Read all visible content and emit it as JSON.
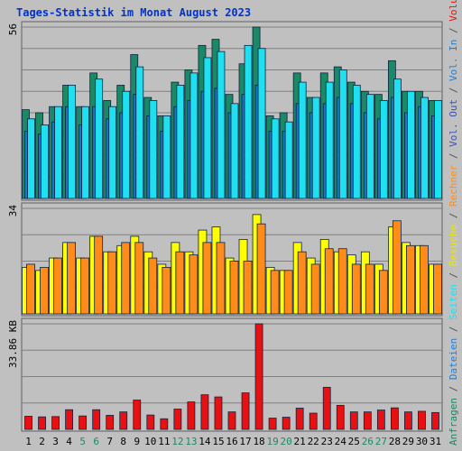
{
  "chart_data": {
    "type": "bar",
    "title": "Tages-Statistik im Monat August 2023",
    "categories": [
      "1",
      "2",
      "3",
      "4",
      "5",
      "6",
      "7",
      "8",
      "9",
      "10",
      "11",
      "12",
      "13",
      "14",
      "15",
      "16",
      "17",
      "18",
      "19",
      "20",
      "21",
      "22",
      "23",
      "24",
      "25",
      "26",
      "27",
      "28",
      "29",
      "30",
      "31"
    ],
    "weekend_days": [
      "5",
      "6",
      "12",
      "13",
      "19",
      "20",
      "26",
      "27"
    ],
    "panels": [
      {
        "name": "anfragen-seiten-dateien",
        "ymax": 56,
        "ymax_label": "56",
        "series": [
          {
            "name": "Anfragen",
            "color": "#1a8a66",
            "values": [
              29,
              28,
              30,
              37,
              30,
              41,
              32,
              37,
              47,
              33,
              27,
              38,
              42,
              50,
              52,
              34,
              44,
              56,
              27,
              28,
              41,
              33,
              41,
              43,
              38,
              35,
              34,
              45,
              35,
              35,
              32
            ]
          },
          {
            "name": "Seiten",
            "color": "#1878c8",
            "values": [
              22,
              21,
              25,
              30,
              24,
              30,
              26,
              28,
              34,
              27,
              22,
              30,
              32,
              35,
              36,
              28,
              34,
              37,
              22,
              22,
              31,
              28,
              31,
              33,
              31,
              28,
              26,
              33,
              28,
              30,
              27
            ]
          },
          {
            "name": "Dateien",
            "color": "#1ee0f0",
            "values": [
              26,
              24,
              30,
              37,
              30,
              39,
              30,
              35,
              43,
              32,
              27,
              37,
              41,
              46,
              48,
              31,
              50,
              49,
              26,
              25,
              38,
              33,
              38,
              42,
              37,
              34,
              32,
              39,
              35,
              33,
              32
            ]
          }
        ]
      },
      {
        "name": "besuche-rechner",
        "ymax": 34,
        "ymax_label": "34",
        "series": [
          {
            "name": "Besuche",
            "color": "#ffff00",
            "values": [
              15,
              14,
              18,
              23,
              18,
              25,
              20,
              22,
              25,
              20,
              16,
              23,
              20,
              27,
              28,
              18,
              24,
              32,
              15,
              14,
              23,
              18,
              24,
              20,
              19,
              20,
              16,
              28,
              23,
              22,
              16
            ]
          },
          {
            "name": "Rechner",
            "color": "#ff8c1a",
            "values": [
              16,
              15,
              18,
              23,
              18,
              25,
              20,
              23,
              23,
              18,
              15,
              20,
              19,
              23,
              23,
              17,
              17,
              29,
              14,
              14,
              20,
              16,
              21,
              21,
              16,
              16,
              14,
              30,
              22,
              22,
              16
            ]
          }
        ]
      },
      {
        "name": "volumen",
        "ymax": 33.86,
        "ymax_label": "33.86 KB",
        "series": [
          {
            "name": "Volumen",
            "color": "#e81010",
            "values": [
              4.2,
              4.0,
              4.1,
              6.3,
              4.3,
              6.3,
              4.5,
              5.6,
              9.4,
              4.6,
              3.4,
              6.5,
              8.8,
              11.1,
              10.4,
              5.6,
              11.7,
              33.86,
              3.6,
              3.9,
              6.8,
              5.2,
              13.5,
              7.7,
              5.6,
              5.6,
              6.2,
              6.9,
              5.6,
              5.8,
              5.4
            ]
          }
        ]
      }
    ],
    "right_axis_labels": [
      {
        "text": "Anfragen",
        "color": "#1a8a66"
      },
      {
        "text": " / ",
        "color": "#555555"
      },
      {
        "text": "Dateien",
        "color": "#1f7fd8"
      },
      {
        "text": " / ",
        "color": "#555555"
      },
      {
        "text": "Seiten",
        "color": "#1ee0f0"
      },
      {
        "text": " / ",
        "color": "#555555"
      },
      {
        "text": "Besuche",
        "color": "#e8e800"
      },
      {
        "text": " / ",
        "color": "#555555"
      },
      {
        "text": "Rechner",
        "color": "#ff8c1a"
      },
      {
        "text": " / ",
        "color": "#555555"
      },
      {
        "text": "Vol. Out",
        "color": "#3f51b5"
      },
      {
        "text": " / ",
        "color": "#555555"
      },
      {
        "text": "Vol. In",
        "color": "#1f7fd8"
      },
      {
        "text": " / ",
        "color": "#555555"
      },
      {
        "text": "Volumen",
        "color": "#e81010"
      }
    ],
    "colors": {
      "background": "#c0c0c0",
      "plot_bg": "#c0c0c0",
      "grid": "#808080",
      "title": "#0033cc",
      "weekday_label": "#000000",
      "weekend_label": "#1a8a66"
    }
  }
}
